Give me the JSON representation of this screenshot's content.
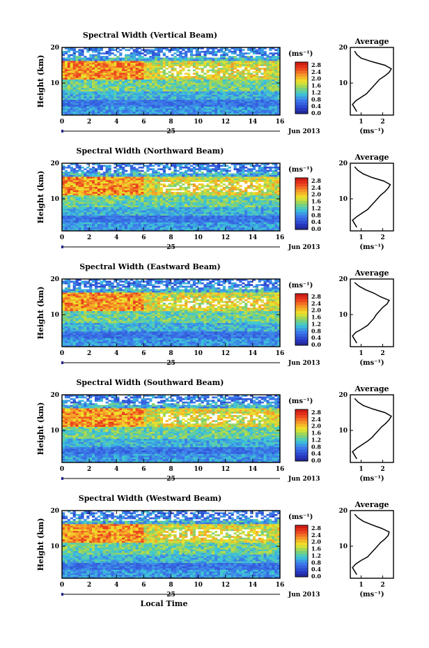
{
  "figure": {
    "common_xlabel": "Local Time",
    "date_day_label": "25",
    "date_month_label": "Jun 2013",
    "colorbar_unit": "(ms⁻¹)",
    "avg_title": "Average",
    "avg_xlabel": "(ms⁻¹)",
    "colors": {
      "red": "#e0201a",
      "orange": "#f08a1f",
      "yellow": "#f5e61a",
      "green": "#8fd05a",
      "cyan": "#3cc8d8",
      "blue": "#3a6fe0",
      "navy": "#23238a"
    }
  },
  "chart_data": [
    {
      "type": "heatmap",
      "title": "Spectral Width (Vertical Beam)",
      "xlabel": "",
      "ylabel": "Height (km)",
      "xlim": [
        0,
        16
      ],
      "ylim": [
        1,
        20
      ],
      "xticks": [
        "0",
        "2",
        "4",
        "6",
        "8",
        "10",
        "12",
        "14",
        "16"
      ],
      "yticks": [
        "10",
        "20"
      ],
      "colorbar": {
        "range": [
          0,
          3.0
        ],
        "labels": [
          "2.8",
          "2.4",
          "2.0",
          "1.6",
          "1.2",
          "0.8",
          "0.4",
          "0.0"
        ]
      },
      "profile": {
        "title": "Average",
        "xlabel": "(ms⁻¹)",
        "xlim": [
          0.5,
          2.5
        ],
        "xticks": [
          "1",
          "2"
        ],
        "height_km": [
          2,
          3,
          4,
          5,
          6,
          7,
          8,
          9,
          10,
          11,
          12,
          13,
          14,
          15,
          16,
          17,
          18,
          19
        ],
        "mean_width": [
          0.8,
          0.7,
          0.6,
          0.75,
          1.0,
          1.25,
          1.4,
          1.55,
          1.7,
          1.85,
          2.1,
          2.3,
          2.4,
          2.1,
          1.5,
          1.0,
          0.8,
          0.7
        ]
      }
    },
    {
      "type": "heatmap",
      "title": "Spectral Width (Northward Beam)",
      "xlabel": "",
      "ylabel": "Height (km)",
      "xlim": [
        0,
        16
      ],
      "ylim": [
        1,
        20
      ],
      "xticks": [
        "0",
        "2",
        "4",
        "6",
        "8",
        "10",
        "12",
        "14",
        "16"
      ],
      "yticks": [
        "10",
        "20"
      ],
      "colorbar": {
        "range": [
          0,
          3.0
        ],
        "labels": [
          "2.8",
          "2.4",
          "2.0",
          "1.6",
          "1.2",
          "0.8",
          "0.4",
          "0.0"
        ]
      },
      "profile": {
        "title": "Average",
        "xlabel": "(ms⁻¹)",
        "xlim": [
          0.5,
          2.5
        ],
        "xticks": [
          "1",
          "2"
        ],
        "height_km": [
          2,
          3,
          4,
          5,
          6,
          7,
          8,
          9,
          10,
          11,
          12,
          13,
          14,
          15,
          16,
          17,
          18,
          19
        ],
        "mean_width": [
          0.8,
          0.7,
          0.6,
          0.8,
          1.05,
          1.3,
          1.45,
          1.6,
          1.75,
          1.9,
          2.1,
          2.25,
          2.35,
          2.05,
          1.5,
          1.1,
          0.85,
          0.7
        ]
      }
    },
    {
      "type": "heatmap",
      "title": "Spectral Width (Eastward Beam)",
      "xlabel": "",
      "ylabel": "Height (km)",
      "xlim": [
        0,
        16
      ],
      "ylim": [
        1,
        20
      ],
      "xticks": [
        "0",
        "2",
        "4",
        "6",
        "8",
        "10",
        "12",
        "14",
        "16"
      ],
      "yticks": [
        "10",
        "20"
      ],
      "colorbar": {
        "range": [
          0,
          3.0
        ],
        "labels": [
          "2.8",
          "2.4",
          "2.0",
          "1.6",
          "1.2",
          "0.8",
          "0.4",
          "0.0"
        ]
      },
      "profile": {
        "title": "Average",
        "xlabel": "(ms⁻¹)",
        "xlim": [
          0.5,
          2.5
        ],
        "xticks": [
          "1",
          "2"
        ],
        "height_km": [
          2,
          3,
          4,
          5,
          6,
          7,
          8,
          9,
          10,
          11,
          12,
          13,
          14,
          15,
          16,
          17,
          18,
          19
        ],
        "mean_width": [
          0.8,
          0.7,
          0.6,
          0.75,
          1.05,
          1.3,
          1.45,
          1.6,
          1.7,
          1.85,
          2.0,
          2.2,
          2.3,
          1.9,
          1.6,
          1.2,
          0.9,
          0.7
        ]
      }
    },
    {
      "type": "heatmap",
      "title": "Spectral Width (Southward Beam)",
      "xlabel": "",
      "ylabel": "Height (km)",
      "xlim": [
        0,
        16
      ],
      "ylim": [
        1,
        20
      ],
      "xticks": [
        "0",
        "2",
        "4",
        "6",
        "8",
        "10",
        "12",
        "14",
        "16"
      ],
      "yticks": [
        "10",
        "20"
      ],
      "colorbar": {
        "range": [
          0,
          3.0
        ],
        "labels": [
          "2.8",
          "2.4",
          "2.0",
          "1.6",
          "1.2",
          "0.8",
          "0.4",
          "0.0"
        ]
      },
      "profile": {
        "title": "Average",
        "xlabel": "(ms⁻¹)",
        "xlim": [
          0.5,
          2.5
        ],
        "xticks": [
          "1",
          "2"
        ],
        "height_km": [
          2,
          3,
          4,
          5,
          6,
          7,
          8,
          9,
          10,
          11,
          12,
          13,
          14,
          15,
          16,
          17,
          18,
          19
        ],
        "mean_width": [
          0.8,
          0.7,
          0.6,
          0.8,
          1.05,
          1.3,
          1.5,
          1.65,
          1.8,
          1.95,
          2.15,
          2.3,
          2.4,
          2.1,
          1.55,
          1.1,
          0.85,
          0.7
        ]
      }
    },
    {
      "type": "heatmap",
      "title": "Spectral Width (Westward Beam)",
      "xlabel": "Local Time",
      "ylabel": "Height (km)",
      "xlim": [
        0,
        16
      ],
      "ylim": [
        1,
        20
      ],
      "xticks": [
        "0",
        "2",
        "4",
        "6",
        "8",
        "10",
        "12",
        "14",
        "16"
      ],
      "yticks": [
        "10",
        "20"
      ],
      "colorbar": {
        "range": [
          0,
          3.0
        ],
        "labels": [
          "2.8",
          "2.4",
          "2.0",
          "1.6",
          "1.2",
          "0.8",
          "0.4",
          "0.0"
        ]
      },
      "profile": {
        "title": "Average",
        "xlabel": "(ms⁻¹)",
        "xlim": [
          0.5,
          2.5
        ],
        "xticks": [
          "1",
          "2"
        ],
        "height_km": [
          2,
          3,
          4,
          5,
          6,
          7,
          8,
          9,
          10,
          11,
          12,
          13,
          14,
          15,
          16,
          17,
          18,
          19
        ],
        "mean_width": [
          0.8,
          0.7,
          0.6,
          0.75,
          1.0,
          1.3,
          1.45,
          1.6,
          1.75,
          1.9,
          2.1,
          2.25,
          2.3,
          1.95,
          1.5,
          1.1,
          0.85,
          0.7
        ]
      }
    }
  ]
}
